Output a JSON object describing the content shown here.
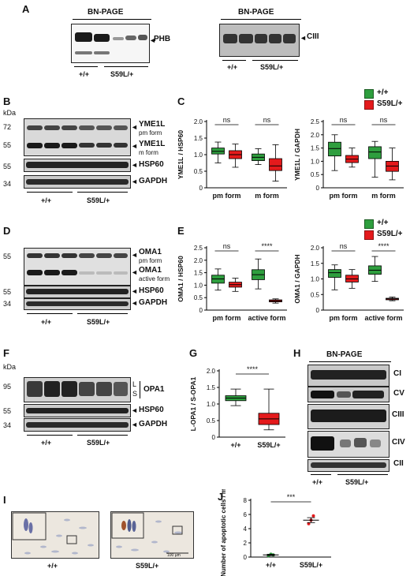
{
  "panels": {
    "A": "A",
    "B": "B",
    "C": "C",
    "D": "D",
    "E": "E",
    "F": "F",
    "G": "G",
    "H": "H",
    "I": "I",
    "J": "J"
  },
  "panelA": {
    "left_title": "BN-PAGE",
    "left_label": "PHB",
    "right_title": "BN-PAGE",
    "right_label": "CIII",
    "wt": "+/+",
    "mut": "S59L/+"
  },
  "panelB": {
    "kda": "kDa",
    "mw": [
      "72",
      "55",
      "55",
      "34"
    ],
    "labels": {
      "yme1l_pm": "YME1L",
      "pm_form": "pm form",
      "yme1l_m": "YME1L",
      "m_form": "m form",
      "hsp60": "HSP60",
      "gapdh": "GAPDH"
    },
    "wt": "+/+",
    "mut": "S59L/+"
  },
  "panelD": {
    "mw": [
      "55",
      "55",
      "34"
    ],
    "labels": {
      "oma1_pm": "OMA1",
      "pm_form": "pm form",
      "oma1_active": "OMA1",
      "active_form": "active form",
      "hsp60": "HSP60",
      "gapdh": "GAPDH"
    },
    "wt": "+/+",
    "mut": "S59L/+"
  },
  "panelF": {
    "kda": "kDa",
    "mw": [
      "95",
      "55",
      "34"
    ],
    "labels": {
      "L": "L",
      "S": "S",
      "opa1": "OPA1",
      "hsp60": "HSP60",
      "gapdh": "GAPDH"
    },
    "wt": "+/+",
    "mut": "S59L/+"
  },
  "panelH": {
    "title": "BN-PAGE",
    "labels": [
      "CI",
      "CV",
      "CIII",
      "CIV",
      "CII"
    ],
    "wt": "+/+",
    "mut": "S59L/+"
  },
  "panelI": {
    "wt": "+/+",
    "mut": "S59L/+",
    "scale": "100 µm"
  },
  "legend": {
    "wt": "+/+",
    "mut": "S59L/+"
  },
  "colors": {
    "wt": "#2e9e3e",
    "mut": "#e41a1c"
  },
  "chart_data": [
    {
      "id": "C-left",
      "type": "box",
      "ylabel": "YME1L / HSP60",
      "ylim": [
        0,
        2.0
      ],
      "yticks": [
        "0",
        "0.5",
        "1.0",
        "1.5",
        "2.0"
      ],
      "categories": [
        "pm form",
        "m form"
      ],
      "series": [
        {
          "name": "+/+",
          "boxes": [
            {
              "min": 0.75,
              "q1": 1.02,
              "median": 1.1,
              "q3": 1.2,
              "max": 1.38
            },
            {
              "min": 0.7,
              "q1": 0.82,
              "median": 0.92,
              "q3": 1.02,
              "max": 1.18
            }
          ]
        },
        {
          "name": "S59L/+",
          "boxes": [
            {
              "min": 0.62,
              "q1": 0.88,
              "median": 1.0,
              "q3": 1.12,
              "max": 1.32
            },
            {
              "min": 0.2,
              "q1": 0.52,
              "median": 0.66,
              "q3": 0.88,
              "max": 1.3
            }
          ]
        }
      ],
      "annotations": [
        "ns",
        "ns"
      ]
    },
    {
      "id": "C-right",
      "type": "box",
      "ylabel": "YME1L / GAPDH",
      "ylim": [
        0,
        2.5
      ],
      "yticks": [
        "0",
        "0.5",
        "1.0",
        "1.5",
        "2.0",
        "2.5"
      ],
      "categories": [
        "pm form",
        "m form"
      ],
      "series": [
        {
          "name": "+/+",
          "boxes": [
            {
              "min": 0.65,
              "q1": 1.2,
              "median": 1.48,
              "q3": 1.72,
              "max": 2.0
            },
            {
              "min": 0.4,
              "q1": 1.1,
              "median": 1.35,
              "q3": 1.55,
              "max": 1.75
            }
          ]
        },
        {
          "name": "S59L/+",
          "boxes": [
            {
              "min": 0.78,
              "q1": 0.95,
              "median": 1.08,
              "q3": 1.22,
              "max": 1.5
            },
            {
              "min": 0.3,
              "q1": 0.62,
              "median": 0.82,
              "q3": 1.0,
              "max": 1.5
            }
          ]
        }
      ],
      "annotations": [
        "ns",
        "ns"
      ]
    },
    {
      "id": "E-left",
      "type": "box",
      "ylabel": "OMA1 / HSP60",
      "ylim": [
        0,
        2.5
      ],
      "yticks": [
        "0",
        "0.5",
        "1.0",
        "1.5",
        "2.0",
        "2.5"
      ],
      "categories": [
        "pm form",
        "active form"
      ],
      "series": [
        {
          "name": "+/+",
          "boxes": [
            {
              "min": 0.8,
              "q1": 1.08,
              "median": 1.25,
              "q3": 1.4,
              "max": 1.65
            },
            {
              "min": 0.85,
              "q1": 1.22,
              "median": 1.42,
              "q3": 1.62,
              "max": 2.05
            }
          ]
        },
        {
          "name": "S59L/+",
          "boxes": [
            {
              "min": 0.75,
              "q1": 0.92,
              "median": 1.02,
              "q3": 1.12,
              "max": 1.28
            },
            {
              "min": 0.28,
              "q1": 0.33,
              "median": 0.37,
              "q3": 0.41,
              "max": 0.45
            }
          ]
        }
      ],
      "annotations": [
        "ns",
        "****"
      ]
    },
    {
      "id": "E-right",
      "type": "box",
      "ylabel": "OMA1 / GAPDH",
      "ylim": [
        0,
        2.0
      ],
      "yticks": [
        "0",
        "0.5",
        "1.0",
        "1.5",
        "2.0"
      ],
      "categories": [
        "pm form",
        "active form"
      ],
      "series": [
        {
          "name": "+/+",
          "boxes": [
            {
              "min": 0.65,
              "q1": 1.05,
              "median": 1.2,
              "q3": 1.3,
              "max": 1.45
            },
            {
              "min": 0.92,
              "q1": 1.15,
              "median": 1.28,
              "q3": 1.42,
              "max": 1.72
            }
          ]
        },
        {
          "name": "S59L/+",
          "boxes": [
            {
              "min": 0.7,
              "q1": 0.9,
              "median": 1.0,
              "q3": 1.12,
              "max": 1.3
            },
            {
              "min": 0.3,
              "q1": 0.33,
              "median": 0.36,
              "q3": 0.38,
              "max": 0.42
            }
          ]
        }
      ],
      "annotations": [
        "ns",
        "****"
      ]
    },
    {
      "id": "G",
      "type": "box",
      "ylabel": "L-OPA1 / S-OPA1",
      "ylim": [
        0,
        2.0
      ],
      "yticks": [
        "0",
        "0.5",
        "1.0",
        "1.5",
        "2.0"
      ],
      "categories": [
        "+/+",
        "S59L/+"
      ],
      "series": [
        {
          "name": "",
          "boxes": [
            {
              "min": 0.95,
              "q1": 1.1,
              "median": 1.18,
              "q3": 1.25,
              "max": 1.45
            },
            {
              "min": 0.22,
              "q1": 0.38,
              "median": 0.55,
              "q3": 0.72,
              "max": 1.45
            }
          ]
        }
      ],
      "annotations": [
        "****"
      ]
    },
    {
      "id": "J",
      "type": "scatter",
      "ylabel": "Number of apoptotic cells / mm²",
      "ylim": [
        0,
        8
      ],
      "yticks": [
        "0",
        "2",
        "4",
        "6",
        "8"
      ],
      "categories": [
        "+/+",
        "S59L/+"
      ],
      "points": [
        [
          0.2,
          0.4,
          0.3
        ],
        [
          4.7,
          5.2,
          5.8
        ]
      ],
      "means": [
        0.3,
        5.2
      ],
      "sem": [
        0.1,
        0.35
      ],
      "annotations": [
        "***"
      ]
    }
  ]
}
